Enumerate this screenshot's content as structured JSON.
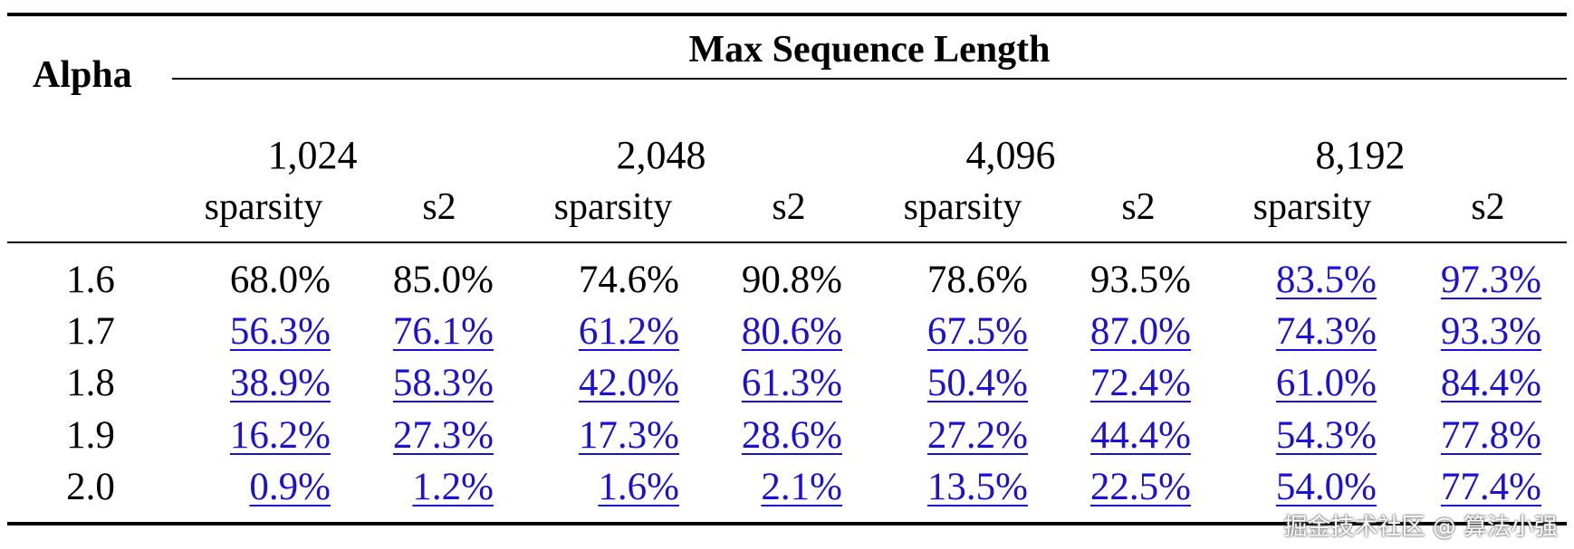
{
  "table": {
    "row_header": "Alpha",
    "group_title": "Max Sequence Length",
    "lengths": [
      "1,024",
      "2,048",
      "4,096",
      "8,192"
    ],
    "sub_columns": [
      "sparsity",
      "s2"
    ],
    "rows": [
      {
        "alpha": "1.6",
        "cells": [
          "68.0%",
          "85.0%",
          "74.6%",
          "90.8%",
          "78.6%",
          "93.5%",
          "83.5%",
          "97.3%"
        ],
        "links": [
          false,
          false,
          false,
          false,
          false,
          false,
          true,
          true
        ]
      },
      {
        "alpha": "1.7",
        "cells": [
          "56.3%",
          "76.1%",
          "61.2%",
          "80.6%",
          "67.5%",
          "87.0%",
          "74.3%",
          "93.3%"
        ],
        "links": [
          true,
          true,
          true,
          true,
          true,
          true,
          true,
          true
        ]
      },
      {
        "alpha": "1.8",
        "cells": [
          "38.9%",
          "58.3%",
          "42.0%",
          "61.3%",
          "50.4%",
          "72.4%",
          "61.0%",
          "84.4%"
        ],
        "links": [
          true,
          true,
          true,
          true,
          true,
          true,
          true,
          true
        ]
      },
      {
        "alpha": "1.9",
        "cells": [
          "16.2%",
          "27.3%",
          "17.3%",
          "28.6%",
          "27.2%",
          "44.4%",
          "54.3%",
          "77.8%"
        ],
        "links": [
          true,
          true,
          true,
          true,
          true,
          true,
          true,
          true
        ]
      },
      {
        "alpha": "2.0",
        "cells": [
          "0.9%",
          "1.2%",
          "1.6%",
          "2.1%",
          "13.5%",
          "22.5%",
          "54.0%",
          "77.4%"
        ],
        "links": [
          true,
          true,
          true,
          true,
          true,
          true,
          true,
          true
        ]
      }
    ]
  },
  "watermark": "掘金技术社区 @ 算法小强",
  "colors": {
    "link": "#1a10d6",
    "text": "#000000"
  }
}
